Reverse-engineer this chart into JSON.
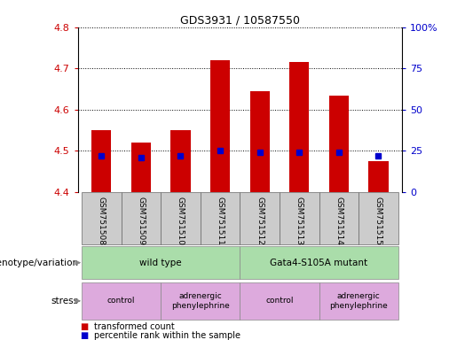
{
  "title": "GDS3931 / 10587550",
  "samples": [
    "GSM751508",
    "GSM751509",
    "GSM751510",
    "GSM751511",
    "GSM751512",
    "GSM751513",
    "GSM751514",
    "GSM751515"
  ],
  "bar_values": [
    4.55,
    4.52,
    4.55,
    4.72,
    4.645,
    4.715,
    4.635,
    4.475
  ],
  "bar_bottom": 4.4,
  "percentile_values": [
    22,
    21,
    22,
    25,
    24,
    24,
    24,
    22
  ],
  "ylim_left": [
    4.4,
    4.8
  ],
  "ylim_right": [
    0,
    100
  ],
  "yticks_left": [
    4.4,
    4.5,
    4.6,
    4.7,
    4.8
  ],
  "yticks_right": [
    0,
    25,
    50,
    75,
    100
  ],
  "ytick_labels_right": [
    "0",
    "25",
    "50",
    "75",
    "100%"
  ],
  "bar_color": "#cc0000",
  "percentile_color": "#0000cc",
  "genotype_groups": [
    {
      "label": "wild type",
      "start": 0,
      "end": 4
    },
    {
      "label": "Gata4-S105A mutant",
      "start": 4,
      "end": 8
    }
  ],
  "stress_groups": [
    {
      "label": "control",
      "start": 0,
      "end": 2
    },
    {
      "label": "adrenergic\nphenylephrine",
      "start": 2,
      "end": 4
    },
    {
      "label": "control",
      "start": 4,
      "end": 6
    },
    {
      "label": "adrenergic\nphenylephrine",
      "start": 6,
      "end": 8
    }
  ],
  "legend_items": [
    {
      "label": "transformed count",
      "color": "#cc0000"
    },
    {
      "label": "percentile rank within the sample",
      "color": "#0000cc"
    }
  ],
  "label_genotype": "genotype/variation",
  "label_stress": "stress",
  "bar_width": 0.5,
  "sample_bg_color": "#cccccc",
  "sample_border_color": "#666666",
  "geno_color": "#aaddaa",
  "stress_color": "#ddaadd",
  "geno_border": "#888888",
  "stress_border": "#888888"
}
